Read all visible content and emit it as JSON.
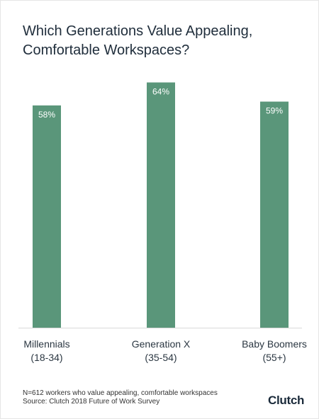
{
  "title_lines": [
    "Which Generations Value Appealing,",
    "Comfortable Workspaces?"
  ],
  "footnote": {
    "line1": "N=612 workers who value appealing, comfortable workspaces",
    "line2": "Source: Clutch 2018 Future of Work Survey"
  },
  "logo_text": "Clutch",
  "colors": {
    "bar": "#5a967a",
    "baseline": "#d9d9d9"
  },
  "chart_data": {
    "type": "bar",
    "title": "Which Generations Value Appealing, Comfortable Workspaces?",
    "categories": [
      [
        "Millennials",
        "(18-34)"
      ],
      [
        "Generation X",
        "(35-54)"
      ],
      [
        "Baby Boomers",
        "(55+)"
      ]
    ],
    "values": [
      58,
      64,
      59
    ],
    "value_labels": [
      "58%",
      "64%",
      "59%"
    ],
    "ylim": [
      0,
      70
    ],
    "grid": false,
    "legend": "none"
  }
}
